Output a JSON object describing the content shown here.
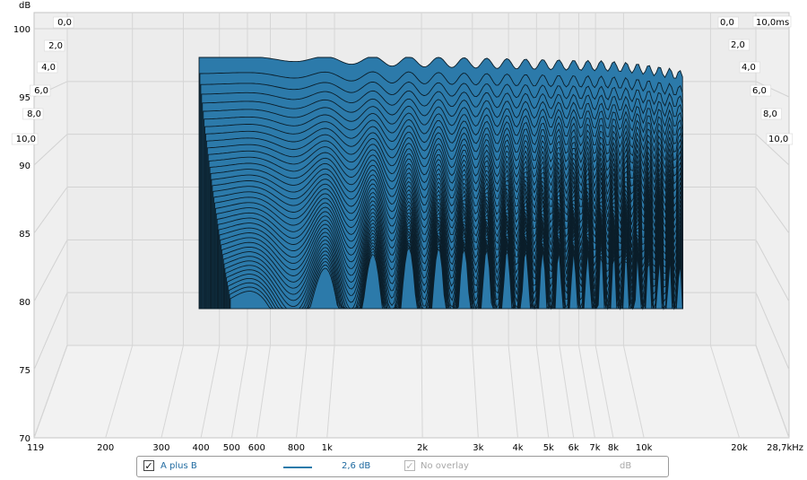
{
  "chart_data": {
    "type": "waterfall",
    "yaxis": {
      "label": "dB",
      "ylim": [
        70,
        100
      ],
      "ticks": [
        "100",
        "95",
        "90",
        "85",
        "80",
        "75",
        "70"
      ]
    },
    "xaxis": {
      "label": "kHz",
      "scale": "log",
      "xlim": [
        119,
        28700
      ],
      "ticks": [
        {
          "v": 119,
          "label": "119"
        },
        {
          "v": 200,
          "label": "200"
        },
        {
          "v": 300,
          "label": "300"
        },
        {
          "v": 400,
          "label": "400"
        },
        {
          "v": 500,
          "label": "500"
        },
        {
          "v": 600,
          "label": "600"
        },
        {
          "v": 800,
          "label": "800"
        },
        {
          "v": 1000,
          "label": "1k"
        },
        {
          "v": 2000,
          "label": "2k"
        },
        {
          "v": 3000,
          "label": "3k"
        },
        {
          "v": 4000,
          "label": "4k"
        },
        {
          "v": 5000,
          "label": "5k"
        },
        {
          "v": 6000,
          "label": "6k"
        },
        {
          "v": 7000,
          "label": "7k"
        },
        {
          "v": 8000,
          "label": "8k"
        },
        {
          "v": 10000,
          "label": "10k"
        },
        {
          "v": 20000,
          "label": "20k"
        },
        {
          "v": 28700,
          "label": "28,7kHz"
        }
      ]
    },
    "zaxis": {
      "unit": "ms",
      "ticks": [
        "0,0",
        "2,0",
        "4,0",
        "6,0",
        "8,0",
        "10,0"
      ],
      "max_label": "10,0ms"
    },
    "series_color": "#2c7aaa",
    "slice_count": 40,
    "freq_range": [
      340,
      16000
    ],
    "floor_db": 74.5,
    "top_db": 98.3
  },
  "legend": {
    "item1": {
      "check": "✓",
      "name": "A plus B",
      "value": "2,6 dB"
    },
    "item2": {
      "check": "✓",
      "name": "No overlay",
      "unit": "dB"
    }
  }
}
